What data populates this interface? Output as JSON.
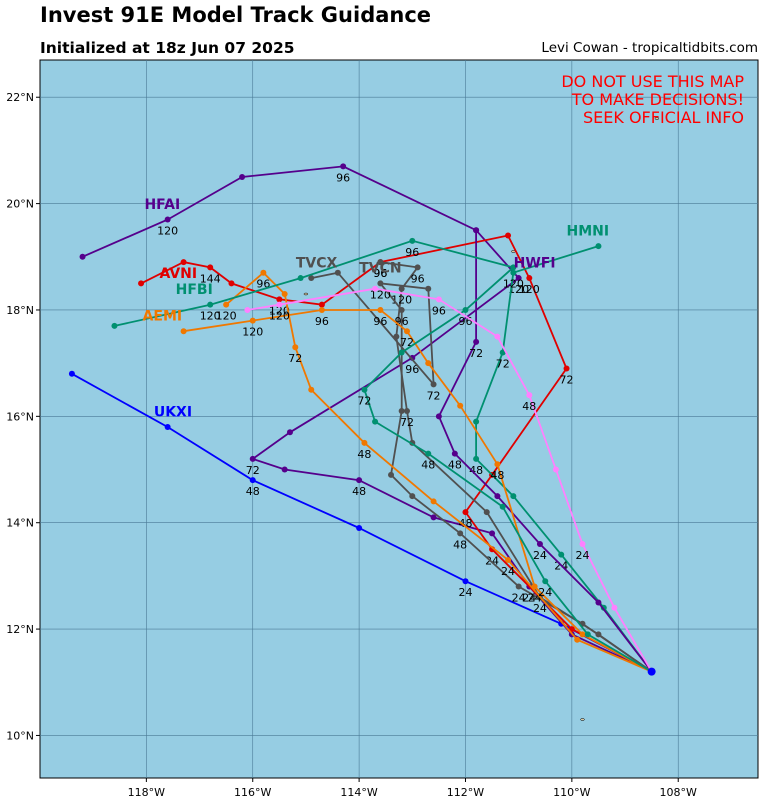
{
  "header": {
    "title": "Invest 91E Model Track Guidance",
    "subtitle": "Initialized at 18z Jun 07 2025",
    "credit": "Levi Cowan - tropicaltidbits.com"
  },
  "warning": [
    "DO NOT USE THIS MAP",
    "TO MAKE DECISIONS!",
    "SEEK OFFICIAL INFO"
  ],
  "colors": {
    "ocean": "#96cde3",
    "grid": "#4a7a96",
    "warning": "#ff0000"
  },
  "chart_data": {
    "type": "map",
    "projection": "lat-lon",
    "xlim": [
      -120,
      -106.5
    ],
    "ylim": [
      9.2,
      22.7
    ],
    "lon_ticks": [
      {
        "value": -118,
        "label": "118°W"
      },
      {
        "value": -116,
        "label": "116°W"
      },
      {
        "value": -114,
        "label": "114°W"
      },
      {
        "value": -112,
        "label": "112°W"
      },
      {
        "value": -110,
        "label": "110°W"
      },
      {
        "value": -108,
        "label": "108°W"
      }
    ],
    "lat_ticks": [
      {
        "value": 10,
        "label": "10°N"
      },
      {
        "value": 12,
        "label": "12°N"
      },
      {
        "value": 14,
        "label": "14°N"
      },
      {
        "value": 16,
        "label": "16°N"
      },
      {
        "value": 18,
        "label": "18°N"
      },
      {
        "value": 20,
        "label": "20°N"
      },
      {
        "value": 22,
        "label": "22°N"
      }
    ],
    "origin": {
      "lon": -108.5,
      "lat": 11.2
    },
    "models": [
      {
        "name": "UKXI",
        "color": "#0000ff",
        "label": {
          "lon": -117.5,
          "lat": 16.0
        },
        "points": [
          [
            -108.5,
            11.2,
            null
          ],
          [
            -110.2,
            12.1,
            null
          ],
          [
            -112,
            12.9,
            "24"
          ],
          [
            -114,
            13.9,
            null
          ],
          [
            -116,
            14.8,
            "48"
          ],
          [
            -117.6,
            15.8,
            null
          ],
          [
            -119.4,
            16.8,
            null
          ]
        ]
      },
      {
        "name": "HFAI",
        "color": "#55008c",
        "label": {
          "lon": -117.7,
          "lat": 19.9
        },
        "points": [
          [
            -108.5,
            11.2,
            null
          ],
          [
            -110,
            11.9,
            null
          ],
          [
            -110.8,
            12.8,
            "24"
          ],
          [
            -111.5,
            13.8,
            null
          ],
          [
            -112.6,
            14.1,
            null
          ],
          [
            -114,
            14.8,
            "48"
          ],
          [
            -115.4,
            15.0,
            null
          ],
          [
            -116,
            15.2,
            "72"
          ],
          [
            -115.3,
            15.7,
            null
          ],
          [
            -113,
            17.1,
            "96"
          ],
          [
            -111,
            18.6,
            "120"
          ],
          [
            -111.8,
            19.5,
            null
          ],
          [
            -114.3,
            20.7,
            "96"
          ],
          [
            -116.2,
            20.5,
            null
          ],
          [
            -117.6,
            19.7,
            "120"
          ],
          [
            -119.2,
            19.0,
            null
          ]
        ]
      },
      {
        "name": "AVNI",
        "color": "#e00000",
        "label": {
          "lon": -117.4,
          "lat": 18.6
        },
        "points": [
          [
            -108.5,
            11.2,
            null
          ],
          [
            -110,
            12.0,
            null
          ],
          [
            -111.5,
            13.5,
            "24"
          ],
          [
            -112,
            14.2,
            "48"
          ],
          [
            -111.5,
            14.9,
            null
          ],
          [
            -110.1,
            16.9,
            "72"
          ],
          [
            -110.8,
            18.6,
            "120"
          ],
          [
            -111.2,
            19.4,
            null
          ],
          [
            -113.6,
            18.9,
            "96"
          ],
          [
            -114.7,
            18.1,
            null
          ],
          [
            -115.5,
            18.2,
            "120"
          ],
          [
            -116.4,
            18.5,
            null
          ],
          [
            -116.8,
            18.8,
            "144"
          ],
          [
            -117.3,
            18.9,
            null
          ],
          [
            -118.1,
            18.5,
            null
          ]
        ]
      },
      {
        "name": "HMNI",
        "color": "#009070",
        "label": {
          "lon": -109.7,
          "lat": 19.4
        },
        "points": [
          [
            -108.5,
            11.2,
            null
          ],
          [
            -109.4,
            12.4,
            null
          ],
          [
            -110.2,
            13.4,
            "24"
          ],
          [
            -111.1,
            14.5,
            null
          ],
          [
            -111.8,
            15.2,
            "48"
          ],
          [
            -111.8,
            15.9,
            null
          ],
          [
            -111.3,
            17.2,
            "72"
          ],
          [
            -111.1,
            18.7,
            "120"
          ],
          [
            -109.5,
            19.2,
            null
          ]
        ]
      },
      {
        "name": "HWFI",
        "color": "#55008c",
        "label": {
          "lon": -110.7,
          "lat": 18.8
        },
        "points": [
          [
            -108.5,
            11.2,
            null
          ],
          [
            -109.5,
            12.5,
            null
          ],
          [
            -110.6,
            13.6,
            "24"
          ],
          [
            -111.4,
            14.5,
            null
          ],
          [
            -112.2,
            15.3,
            "48"
          ],
          [
            -112.5,
            16.0,
            null
          ],
          [
            -111.8,
            17.4,
            "72"
          ],
          [
            -111.8,
            19.5,
            null
          ]
        ]
      },
      {
        "name": "TVCN",
        "color": "#505050",
        "label": {
          "lon": -113.6,
          "lat": 18.7
        },
        "points": [
          [
            -108.5,
            11.2,
            null
          ],
          [
            -109.5,
            11.9,
            null
          ],
          [
            -110.6,
            12.6,
            "24"
          ],
          [
            -111.6,
            14.2,
            null
          ],
          [
            -113,
            15.5,
            null
          ],
          [
            -113.1,
            16.1,
            "72"
          ],
          [
            -113.3,
            17.5,
            null
          ],
          [
            -113.2,
            18.4,
            "120"
          ],
          [
            -112.9,
            18.8,
            "96"
          ],
          [
            -113.6,
            18.9,
            "96"
          ]
        ]
      },
      {
        "name": "TVCX",
        "color": "#505050",
        "label": {
          "lon": -114.8,
          "lat": 18.8
        },
        "points": [
          [
            -108.5,
            11.2,
            null
          ],
          [
            -109.8,
            12.1,
            null
          ],
          [
            -111,
            12.8,
            "24"
          ],
          [
            -112.1,
            13.8,
            "48"
          ],
          [
            -113,
            14.5,
            null
          ],
          [
            -113.4,
            14.9,
            null
          ],
          [
            -113.2,
            16.1,
            null
          ],
          [
            -113.2,
            18.0,
            "96"
          ],
          [
            -113.6,
            18.5,
            "120"
          ],
          [
            -112.7,
            18.4,
            null
          ],
          [
            -112.6,
            16.6,
            "72"
          ],
          [
            -114.4,
            18.7,
            null
          ],
          [
            -114.9,
            18.6,
            null
          ]
        ]
      },
      {
        "name": "AEMI",
        "color": "#f07800",
        "label": {
          "lon": -117.7,
          "lat": 17.8
        },
        "points": [
          [
            -108.5,
            11.2,
            null
          ],
          [
            -109.8,
            11.9,
            null
          ],
          [
            -110.7,
            12.8,
            "24"
          ],
          [
            -111.4,
            15.1,
            "48"
          ],
          [
            -112.1,
            16.2,
            null
          ],
          [
            -112.7,
            17.0,
            null
          ],
          [
            -113.1,
            17.6,
            "72"
          ],
          [
            -113.6,
            18.0,
            "96"
          ],
          [
            -114.7,
            18.0,
            "96"
          ],
          [
            -116,
            17.8,
            "120"
          ],
          [
            -117.3,
            17.6,
            null
          ]
        ]
      },
      {
        "name": "AEMI-2",
        "color": "#f07800",
        "label": null,
        "points": [
          [
            -108.5,
            11.2,
            null
          ],
          [
            -109.9,
            11.8,
            null
          ],
          [
            -111.2,
            13.3,
            "24"
          ],
          [
            -112.6,
            14.4,
            null
          ],
          [
            -113.9,
            15.5,
            "48"
          ],
          [
            -114.9,
            16.5,
            null
          ],
          [
            -115.2,
            17.3,
            "72"
          ],
          [
            -115.4,
            18.3,
            null
          ],
          [
            -115.8,
            18.7,
            "96"
          ],
          [
            -116.5,
            18.1,
            "120"
          ]
        ]
      },
      {
        "name": "HFBI",
        "color": "#009070",
        "label": {
          "lon": -117.1,
          "lat": 18.3
        },
        "points": [
          [
            -108.5,
            11.2,
            null
          ],
          [
            -109.7,
            11.9,
            null
          ],
          [
            -110.5,
            12.9,
            "24"
          ],
          [
            -111.3,
            14.3,
            null
          ],
          [
            -112.7,
            15.3,
            "48"
          ],
          [
            -113.7,
            15.9,
            null
          ],
          [
            -113.9,
            16.5,
            "72"
          ],
          [
            -113.2,
            17.2,
            null
          ],
          [
            -112,
            18.0,
            "96"
          ],
          [
            -111.1,
            18.8,
            null
          ],
          [
            -113,
            19.3,
            "96"
          ],
          [
            -115.1,
            18.6,
            null
          ],
          [
            -116.8,
            18.1,
            "120"
          ],
          [
            -118.6,
            17.7,
            null
          ]
        ]
      },
      {
        "name": "CONSENSUS",
        "color": "#ff80ff",
        "label": null,
        "points": [
          [
            -108.5,
            11.2,
            null
          ],
          [
            -109.2,
            12.4,
            null
          ],
          [
            -109.8,
            13.6,
            "24"
          ],
          [
            -110.3,
            15.0,
            null
          ],
          [
            -110.8,
            16.4,
            "48"
          ],
          [
            -111.4,
            17.5,
            null
          ],
          [
            -112.5,
            18.2,
            "96"
          ],
          [
            -113.7,
            18.4,
            null
          ],
          [
            -115.5,
            18.1,
            "120"
          ],
          [
            -116.1,
            18.0,
            null
          ]
        ]
      }
    ]
  }
}
